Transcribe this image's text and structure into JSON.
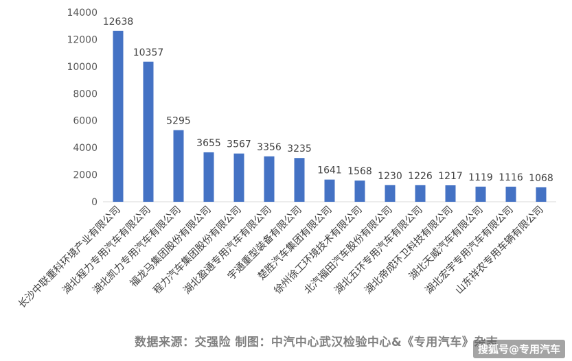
{
  "chart_data": {
    "type": "bar",
    "categories": [
      "长沙中联重科环境产业有限公司",
      "湖北程力专用汽车有限公司",
      "湖北凯力专用汽车有限公司",
      "福龙马集团股份有限公司",
      "程力汽车集团股份有限公司",
      "湖北盈通专用汽车有限公司",
      "宇通重型装备有限公司",
      "楚胜汽车集团有限公司",
      "徐州徐工环境技术有限公司",
      "北汽福田汽车股份有限公司",
      "湖北五环专用汽车有限公司",
      "湖北帝成环卫科技有限公司",
      "湖北天威汽车有限公司",
      "湖北宏宇专用汽车有限公司",
      "山东祥农专用车辆有限公司"
    ],
    "values": [
      12638,
      10357,
      5295,
      3655,
      3567,
      3356,
      3235,
      1641,
      1568,
      1230,
      1226,
      1217,
      1119,
      1116,
      1068
    ],
    "ylim": [
      0,
      14000
    ],
    "yticks": [
      0,
      2000,
      4000,
      6000,
      8000,
      10000,
      12000,
      14000
    ],
    "grid": false,
    "bar_color": "#4472c4",
    "data_labels": true
  },
  "source_text": "数据来源：交强险 制图：中汽中心武汉检验中心&《专用汽车》杂志",
  "watermark_text": "搜狐号@专用汽车"
}
